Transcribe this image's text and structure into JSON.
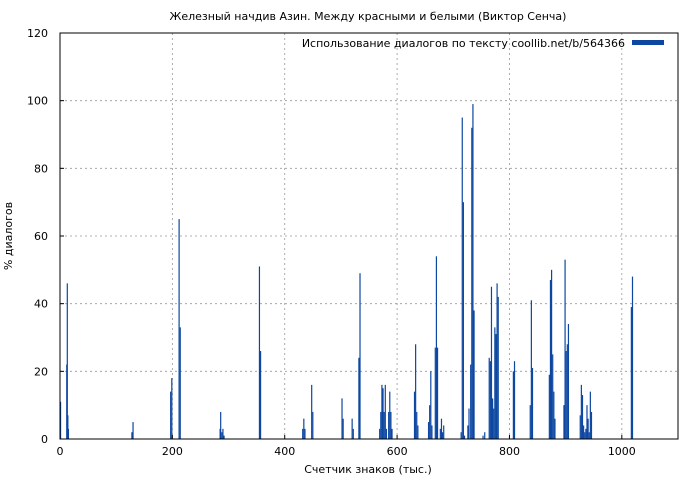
{
  "chart_data": {
    "type": "bar",
    "title": "Железный начдив Азин. Между красными и белыми (Виктор Сенча)",
    "xlabel": "Счетчик знаков (тыс.)",
    "ylabel": "% диалогов",
    "xlim": [
      0,
      1100
    ],
    "ylim": [
      0,
      120
    ],
    "xticks": [
      0,
      200,
      400,
      600,
      800,
      1000
    ],
    "yticks": [
      0,
      20,
      40,
      60,
      80,
      100,
      120
    ],
    "grid": true,
    "legend_position": "top-right",
    "series": [
      {
        "name": "Использование диалогов по тексту coollib.net/b/564366",
        "color": "#0d47a1",
        "points": [
          [
            1,
            11
          ],
          [
            12,
            22
          ],
          [
            13,
            46
          ],
          [
            14,
            7
          ],
          [
            15,
            3
          ],
          [
            128,
            2
          ],
          [
            130,
            5
          ],
          [
            197,
            14
          ],
          [
            199,
            18
          ],
          [
            212,
            65
          ],
          [
            214,
            33
          ],
          [
            285,
            3
          ],
          [
            286,
            8
          ],
          [
            288,
            2
          ],
          [
            290,
            3
          ],
          [
            292,
            1
          ],
          [
            355,
            51
          ],
          [
            357,
            26
          ],
          [
            432,
            3
          ],
          [
            434,
            6
          ],
          [
            436,
            3
          ],
          [
            448,
            16
          ],
          [
            450,
            8
          ],
          [
            502,
            12
          ],
          [
            504,
            6
          ],
          [
            520,
            6
          ],
          [
            522,
            3
          ],
          [
            532,
            24
          ],
          [
            534,
            49
          ],
          [
            569,
            3
          ],
          [
            571,
            8
          ],
          [
            573,
            16
          ],
          [
            575,
            15
          ],
          [
            577,
            8
          ],
          [
            579,
            16
          ],
          [
            581,
            3
          ],
          [
            585,
            8
          ],
          [
            587,
            14
          ],
          [
            589,
            8
          ],
          [
            591,
            3
          ],
          [
            631,
            14
          ],
          [
            633,
            28
          ],
          [
            635,
            8
          ],
          [
            637,
            4
          ],
          [
            656,
            5
          ],
          [
            658,
            10
          ],
          [
            660,
            20
          ],
          [
            662,
            4
          ],
          [
            668,
            27
          ],
          [
            670,
            54
          ],
          [
            672,
            27
          ],
          [
            677,
            3
          ],
          [
            679,
            6
          ],
          [
            681,
            2
          ],
          [
            683,
            4
          ],
          [
            714,
            2
          ],
          [
            716,
            95
          ],
          [
            718,
            70
          ],
          [
            720,
            1
          ],
          [
            726,
            4
          ],
          [
            728,
            9
          ],
          [
            731,
            22
          ],
          [
            733,
            92
          ],
          [
            735,
            99
          ],
          [
            737,
            38
          ],
          [
            753,
            1
          ],
          [
            756,
            2
          ],
          [
            764,
            24
          ],
          [
            766,
            23
          ],
          [
            768,
            45
          ],
          [
            770,
            12
          ],
          [
            772,
            9
          ],
          [
            774,
            33
          ],
          [
            776,
            31
          ],
          [
            778,
            46
          ],
          [
            780,
            42
          ],
          [
            807,
            20
          ],
          [
            809,
            23
          ],
          [
            837,
            10
          ],
          [
            839,
            41
          ],
          [
            841,
            21
          ],
          [
            871,
            19
          ],
          [
            873,
            47
          ],
          [
            875,
            50
          ],
          [
            877,
            25
          ],
          [
            879,
            14
          ],
          [
            881,
            6
          ],
          [
            897,
            10
          ],
          [
            899,
            53
          ],
          [
            901,
            26
          ],
          [
            903,
            28
          ],
          [
            905,
            34
          ],
          [
            926,
            7
          ],
          [
            928,
            16
          ],
          [
            930,
            13
          ],
          [
            932,
            4
          ],
          [
            934,
            2
          ],
          [
            936,
            3
          ],
          [
            938,
            10
          ],
          [
            940,
            6
          ],
          [
            942,
            2
          ],
          [
            944,
            14
          ],
          [
            946,
            8
          ],
          [
            1017,
            39
          ],
          [
            1019,
            48
          ]
        ]
      }
    ]
  }
}
